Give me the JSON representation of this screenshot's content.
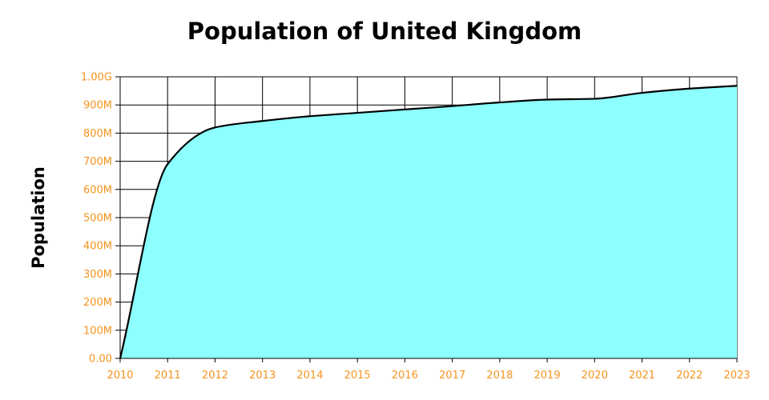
{
  "chart_data": {
    "type": "area",
    "title": "Population of United Kingdom",
    "xlabel": "",
    "ylabel": "Population",
    "x": [
      2010,
      2011,
      2012,
      2013,
      2014,
      2015,
      2016,
      2017,
      2018,
      2019,
      2020,
      2021,
      2022,
      2023
    ],
    "x_tick_labels": [
      "2010",
      "2011",
      "2012",
      "2013",
      "2014",
      "2015",
      "2016",
      "2017",
      "2018",
      "2019",
      "2020",
      "2021",
      "2022",
      "2023"
    ],
    "series": [
      {
        "values": [
          0,
          690000000,
          820000000,
          843000000,
          860000000,
          872000000,
          884000000,
          896000000,
          909000000,
          919000000,
          922000000,
          943000000,
          958000000,
          968000000
        ]
      }
    ],
    "ylim": [
      0,
      1000000000
    ],
    "y_ticks": [
      0,
      100000000,
      200000000,
      300000000,
      400000000,
      500000000,
      600000000,
      700000000,
      800000000,
      900000000,
      1000000000
    ],
    "y_tick_labels": [
      "0.00",
      "100M",
      "200M",
      "300M",
      "400M",
      "500M",
      "600M",
      "700M",
      "800M",
      "900M",
      "1.00G"
    ],
    "grid": true,
    "colors": {
      "fill": "#8dffff",
      "line": "#000000",
      "tick_label": "#f7931e",
      "grid": "#000000"
    }
  }
}
